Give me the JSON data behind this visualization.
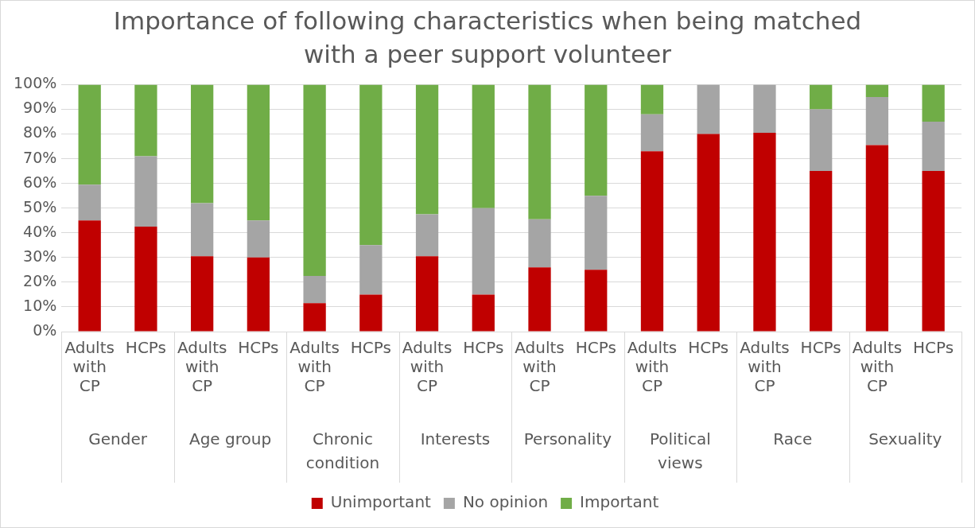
{
  "chart_data": {
    "type": "bar",
    "stacked": true,
    "title": "Importance of following characteristics when being matched with a peer support volunteer",
    "categories": [
      "Adults with CP",
      "HCPs",
      "Adults with CP",
      "HCPs",
      "Adults with CP",
      "HCPs",
      "Adults with CP",
      "HCPs",
      "Adults with CP",
      "HCPs",
      "Adults with CP",
      "HCPs",
      "Adults with CP",
      "HCPs",
      "Adults with CP",
      "HCPs"
    ],
    "annotations": [
      "Gender",
      "Age group",
      "Chronic condition",
      "Interests",
      "Personality",
      "Political views",
      "Race",
      "Sexuality"
    ],
    "series": [
      {
        "name": "Unimportant",
        "color": "#c00000",
        "values": [
          45,
          42.5,
          30.5,
          30,
          11.5,
          15,
          30.5,
          15,
          26,
          25,
          73,
          80,
          80.5,
          65,
          75.5,
          65
        ]
      },
      {
        "name": "No opinion",
        "color": "#a5a5a5",
        "values": [
          14.5,
          28.5,
          21.5,
          15,
          11,
          20,
          17,
          35,
          19.5,
          30,
          15,
          20,
          19.5,
          25,
          19.5,
          20
        ]
      },
      {
        "name": "Important",
        "color": "#70ad47",
        "values": [
          40.5,
          29,
          48,
          55,
          77.5,
          65,
          52.5,
          50,
          54.5,
          45,
          12,
          0,
          0,
          10,
          5,
          15
        ]
      }
    ],
    "ylim": [
      0,
      100
    ],
    "yticks": [
      {
        "value": 0,
        "label": "0%"
      },
      {
        "value": 10,
        "label": "10%"
      },
      {
        "value": 20,
        "label": "20%"
      },
      {
        "value": 30,
        "label": "30%"
      },
      {
        "value": 40,
        "label": "40%"
      },
      {
        "value": 50,
        "label": "50%"
      },
      {
        "value": 60,
        "label": "60%"
      },
      {
        "value": 70,
        "label": "70%"
      },
      {
        "value": 80,
        "label": "80%"
      },
      {
        "value": 90,
        "label": "90%"
      },
      {
        "value": 100,
        "label": "100%"
      }
    ],
    "grid": "y",
    "legend": "bottom"
  }
}
